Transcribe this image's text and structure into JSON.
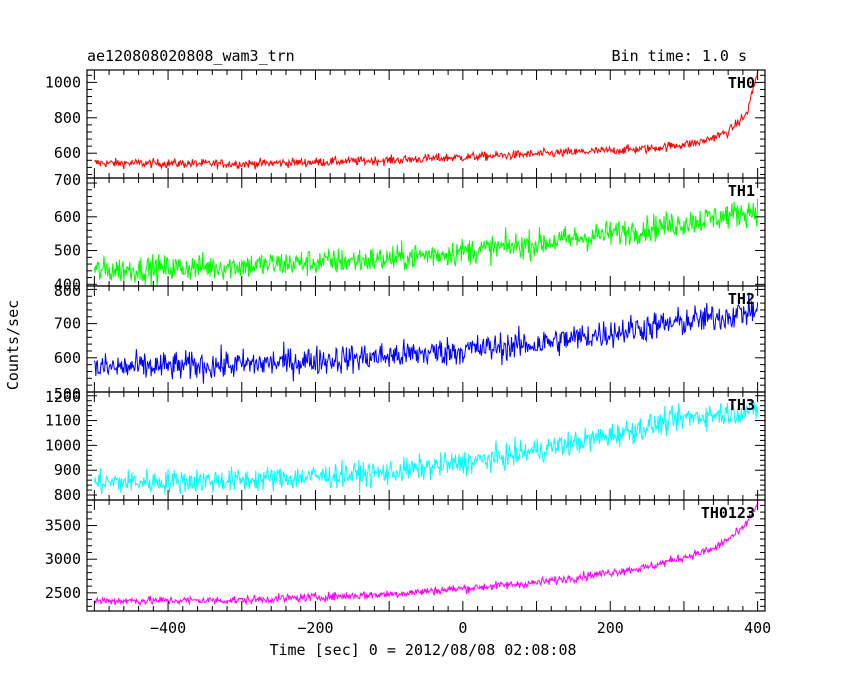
{
  "header": {
    "title": "ae120808020808_wam3_trn",
    "bin_time": "Bin time: 1.0 s"
  },
  "chart_data": {
    "type": "line",
    "xlabel": "Time [sec] 0 = 2012/08/08 02:08:08",
    "ylabel": "Counts/sec",
    "xlim": [
      -510,
      410
    ],
    "x_ticks": [
      -400,
      -200,
      0,
      200,
      400
    ],
    "x_tick_labels": [
      "−400",
      "−200",
      "0",
      "200",
      "400"
    ],
    "grid": false,
    "panels": [
      {
        "name": "TH0",
        "color": "#ff0000",
        "ylim": [
          460,
          1070
        ],
        "y_ticks": [
          600,
          800,
          1000
        ],
        "y_tick_labels": [
          "600",
          "800",
          "1000"
        ],
        "y_bottom_label": "700",
        "series_knots": [
          [
            -500,
            545
          ],
          [
            -300,
            540
          ],
          [
            -100,
            560
          ],
          [
            100,
            595
          ],
          [
            250,
            625
          ],
          [
            320,
            660
          ],
          [
            360,
            720
          ],
          [
            385,
            820
          ],
          [
            400,
            1060
          ]
        ],
        "noise": 18
      },
      {
        "name": "TH1",
        "color": "#00ff00",
        "ylim": [
          395,
          715
        ],
        "y_ticks": [
          400,
          500,
          600
        ],
        "y_tick_labels": [
          "400",
          "500",
          "600"
        ],
        "y_bottom_label": "",
        "series_knots": [
          [
            -500,
            440
          ],
          [
            -300,
            455
          ],
          [
            -100,
            475
          ],
          [
            100,
            520
          ],
          [
            250,
            565
          ],
          [
            350,
            600
          ],
          [
            400,
            620
          ]
        ],
        "noise": 28
      },
      {
        "name": "TH2",
        "color": "#0000ff",
        "ylim": [
          500,
          810
        ],
        "y_ticks": [
          600,
          700
        ],
        "y_tick_labels": [
          "600",
          "700"
        ],
        "y_bottom_label": "500",
        "top_label": "800",
        "series_knots": [
          [
            -500,
            570
          ],
          [
            -300,
            580
          ],
          [
            -100,
            605
          ],
          [
            100,
            640
          ],
          [
            250,
            690
          ],
          [
            350,
            720
          ],
          [
            400,
            740
          ]
        ],
        "noise": 30
      },
      {
        "name": "TH3",
        "color": "#00ffff",
        "ylim": [
          780,
          1215
        ],
        "y_ticks": [
          800,
          900,
          1000,
          1100
        ],
        "y_tick_labels": [
          "800",
          "900",
          "1000",
          "1100"
        ],
        "y_bottom_label": "",
        "top_label": "1200",
        "series_knots": [
          [
            -500,
            850
          ],
          [
            -300,
            860
          ],
          [
            -100,
            890
          ],
          [
            50,
            950
          ],
          [
            200,
            1040
          ],
          [
            300,
            1110
          ],
          [
            400,
            1145
          ]
        ],
        "noise": 35
      },
      {
        "name": "TH0123",
        "color": "#ff00ff",
        "ylim": [
          2230,
          3880
        ],
        "y_ticks": [
          2500,
          3000,
          3500
        ],
        "y_tick_labels": [
          "2500",
          "3000",
          "3500"
        ],
        "y_bottom_label": "",
        "series_knots": [
          [
            -500,
            2380
          ],
          [
            -300,
            2390
          ],
          [
            -100,
            2480
          ],
          [
            100,
            2650
          ],
          [
            250,
            2880
          ],
          [
            340,
            3150
          ],
          [
            380,
            3450
          ],
          [
            400,
            3820
          ]
        ],
        "noise": 45
      }
    ]
  }
}
